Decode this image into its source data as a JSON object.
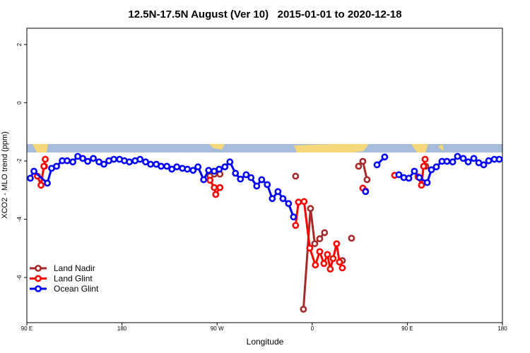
{
  "chart_data": {
    "type": "line",
    "title": "12.5N-17.5N August (Ver 10)   2015-01-01 to 2020-12-18",
    "x_label": "Longitude",
    "y_label": "XCO2 - MLO trend (ppm)",
    "xlim": [
      90,
      540
    ],
    "ylim": [
      -7.55,
      2.56
    ],
    "xticks": [
      {
        "value": 90,
        "label": "90 E"
      },
      180,
      {
        "value": 270,
        "label": "90 W"
      },
      {
        "value": 360,
        "label": "0"
      },
      {
        "value": 450,
        "label": "90 E"
      },
      {
        "value": 540,
        "label": "180"
      }
    ],
    "yticks": [
      2,
      0,
      -2,
      -4,
      -6
    ],
    "legend": "bottom-left",
    "series": [
      {
        "name": "Land Nadir",
        "color": "#a52a2a",
        "x": [
          106.7,
          null,
          263.3,
          267.3,
          272.7,
          null,
          344.3,
          null,
          351.7,
          358.4,
          362.4,
          367.1,
          371.7,
          null,
          388.5,
          null,
          397.2,
          null,
          403.9,
          407.9,
          411.9,
          null,
          467.4
        ],
        "values": [
          -2.18,
          null,
          -2.52,
          -2.45,
          -2.45,
          null,
          -2.52,
          null,
          -7.09,
          -3.63,
          -4.84,
          -4.67,
          -4.46,
          null,
          -5.42,
          null,
          -4.65,
          null,
          -2.18,
          -2.01,
          -2.64,
          null,
          -2.18
        ]
      },
      {
        "name": "Land Glint",
        "color": "#ff0000",
        "x": [
          100.0,
          103.4,
          106.1,
          107.4,
          null,
          263.3,
          267.3,
          268.7,
          272.7,
          null,
          344.3,
          347.0,
          352.3,
          357.7,
          363.0,
          367.1,
          371.1,
          374.4,
          377.1,
          379.8,
          383.1,
          385.8,
          388.5,
          null,
          407.9,
          410.5,
          null,
          438.0,
          null,
          460.1,
          463.4,
          465.4,
          466.8
        ],
        "values": [
          -2.52,
          -2.83,
          -2.18,
          -1.94,
          null,
          -2.66,
          -2.91,
          -3.15,
          -2.91,
          null,
          -4.21,
          -3.41,
          -3.39,
          -4.99,
          -5.57,
          -5.11,
          -5.52,
          -5.21,
          -5.71,
          -5.35,
          -4.84,
          -5.47,
          -5.67,
          null,
          -2.93,
          -3.03,
          null,
          -2.49,
          null,
          -2.54,
          -2.83,
          -2.18,
          -1.94
        ]
      },
      {
        "name": "Ocean Glint",
        "color": "#0000ff",
        "x": [
          93.3,
          96.7,
          109.4,
          113.4,
          118.1,
          123.5,
          128.1,
          133.5,
          138.2,
          142.9,
          147.6,
          152.9,
          158.3,
          162.9,
          167.6,
          172.3,
          177.7,
          182.3,
          187.0,
          192.4,
          197.1,
          202.4,
          207.1,
          212.5,
          217.1,
          222.5,
          227.2,
          231.9,
          237.2,
          241.9,
          247.3,
          251.9,
          257.3,
          262.0,
          267.3,
          272.0,
          277.4,
          282.1,
          287.4,
          292.1,
          297.5,
          302.1,
          307.5,
          312.2,
          317.5,
          322.2,
          327.6,
          332.3,
          337.6,
          342.3,
          null,
          410.5,
          null,
          421.3,
          428.6,
          null,
          442.0,
          446.7,
          451.4,
          456.7,
          461.4,
          468.8,
          472.8,
          477.5,
          482.8,
          487.5,
          492.9,
          497.5,
          502.9,
          507.6,
          512.9,
          517.6,
          522.3,
          527.0,
          532.3,
          537.0
        ],
        "values": [
          -2.59,
          -2.35,
          -2.76,
          -2.25,
          -2.18,
          -1.99,
          -1.99,
          -2.03,
          -1.84,
          -1.91,
          -2.01,
          -1.91,
          -2.03,
          -2.11,
          -1.99,
          -1.94,
          -1.94,
          -1.99,
          -2.03,
          -1.99,
          -1.94,
          -2.03,
          -2.11,
          -2.11,
          -2.18,
          -2.18,
          -2.28,
          -2.2,
          -2.25,
          -2.28,
          -2.32,
          -2.2,
          -2.64,
          -2.32,
          -2.35,
          -2.28,
          -2.2,
          -2.03,
          -2.42,
          -2.62,
          -2.47,
          -2.57,
          -2.86,
          -2.64,
          -2.81,
          -3.29,
          -3.05,
          -3.29,
          -3.46,
          -3.92,
          null,
          -3.05,
          null,
          -2.13,
          -1.86,
          null,
          -2.47,
          -2.57,
          -2.59,
          -2.35,
          -2.57,
          -2.74,
          -2.3,
          -2.2,
          -2.01,
          -2.01,
          -2.03,
          -1.84,
          -1.91,
          -2.03,
          -1.91,
          -2.06,
          -2.13,
          -1.99,
          -1.94,
          -1.94
        ]
      }
    ]
  }
}
